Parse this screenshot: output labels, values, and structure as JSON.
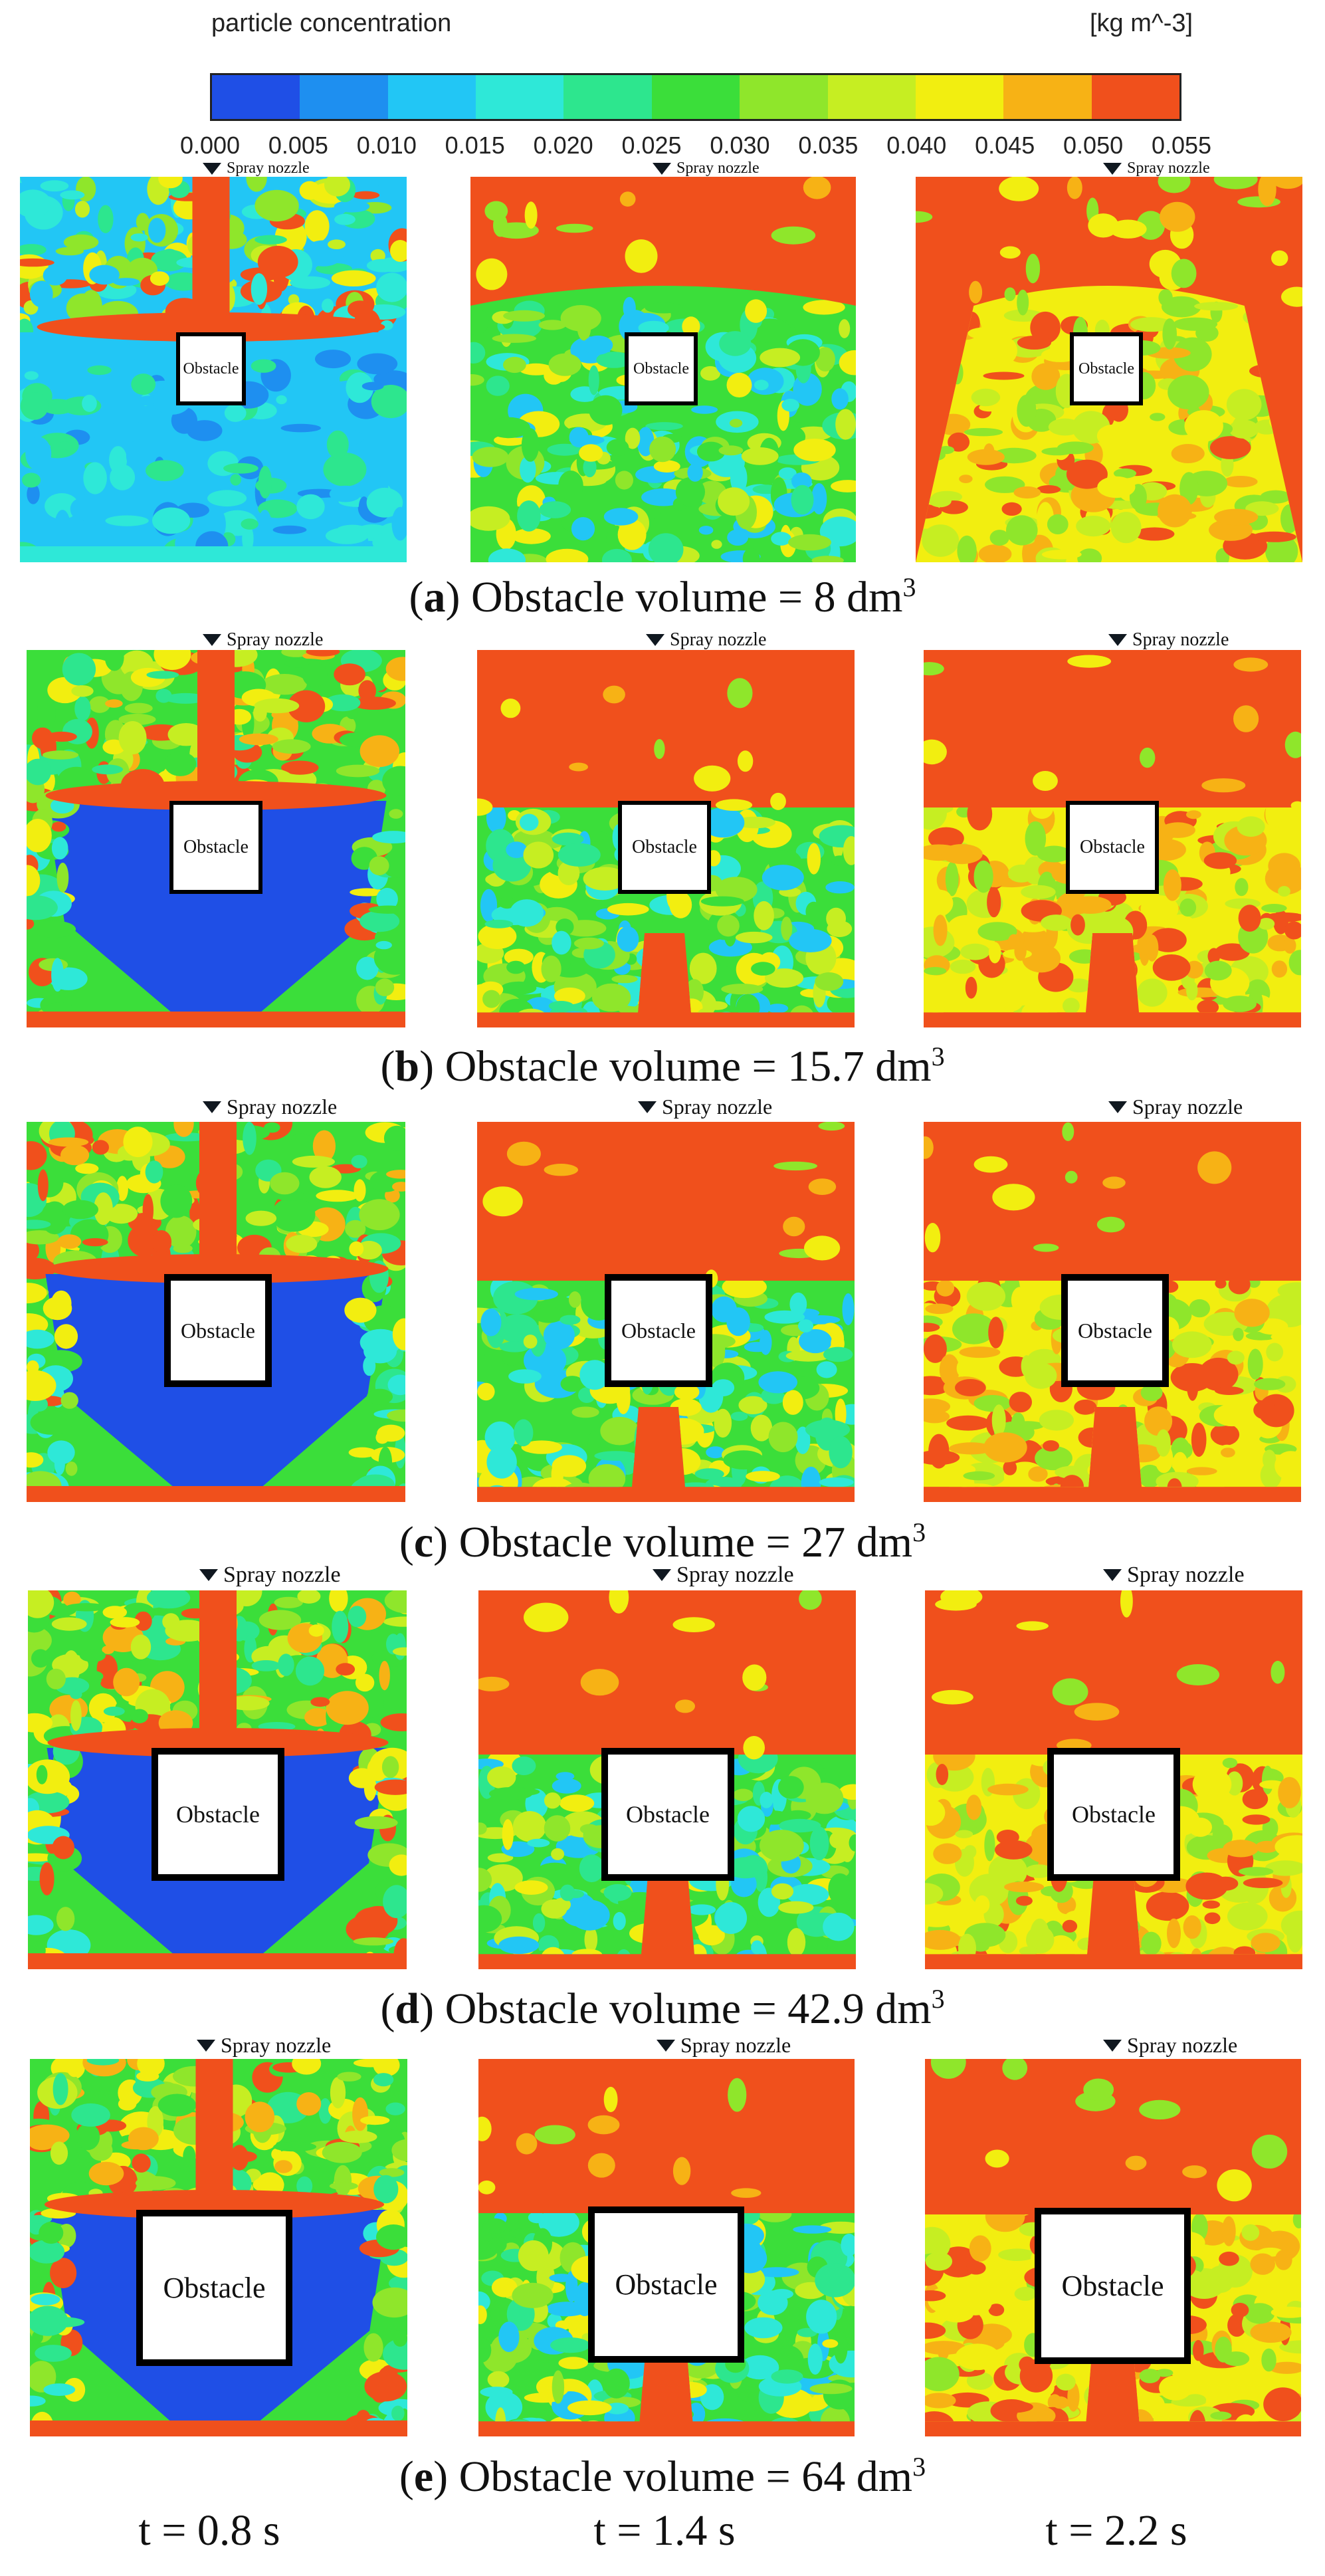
{
  "colorbar": {
    "title": "particle concentration",
    "units": "[kg m^-3]",
    "ticks": [
      "0.000",
      "0.005",
      "0.010",
      "0.015",
      "0.020",
      "0.025",
      "0.030",
      "0.035",
      "0.040",
      "0.045",
      "0.050",
      "0.055"
    ],
    "colors": [
      "#1f4fe6",
      "#1e8ff0",
      "#22c6f5",
      "#2ee8d8",
      "#2de68e",
      "#3bde3a",
      "#8fe62b",
      "#c6ee22",
      "#f2ee10",
      "#f7b215",
      "#f0501c"
    ]
  },
  "nozzle_label": "Spray nozzle",
  "obstacle_label": "Obstacle",
  "rows": [
    {
      "letter": "a",
      "caption_text": ") Obstacle volume = 8 dm",
      "exp": "3",
      "volume_dm3": 8
    },
    {
      "letter": "b",
      "caption_text": ") Obstacle volume = 15.7 dm",
      "exp": "3",
      "volume_dm3": 15.7
    },
    {
      "letter": "c",
      "caption_text": ") Obstacle volume = 27 dm",
      "exp": "3",
      "volume_dm3": 27
    },
    {
      "letter": "d",
      "caption_text": ") Obstacle volume = 42.9 dm",
      "exp": "3",
      "volume_dm3": 42.9
    },
    {
      "letter": "e",
      "caption_text": ") Obstacle volume = 64 dm",
      "exp": "3",
      "volume_dm3": 64
    }
  ],
  "time_labels": [
    "t = 0.8 s",
    "t = 1.4 s",
    "t = 2.2 s"
  ],
  "chart_data": {
    "type": "heatmap",
    "title": "particle concentration",
    "units": "kg m^-3",
    "colorbar_range": [
      0.0,
      0.055
    ],
    "colorbar_step": 0.005,
    "x": [
      "t = 0.8 s",
      "t = 1.4 s",
      "t = 2.2 s"
    ],
    "y": [
      "8 dm3",
      "15.7 dm3",
      "27 dm3",
      "42.9 dm3",
      "64 dm3"
    ]
  }
}
